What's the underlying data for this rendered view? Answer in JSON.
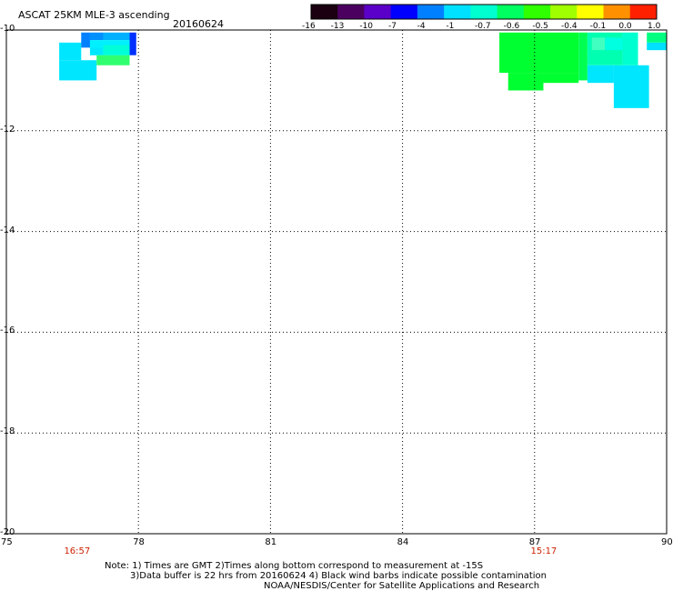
{
  "title": "ASCAT 25KM MLE-3 ascending",
  "date": "20160624",
  "colorbar": {
    "labels": [
      "-16",
      "-13",
      "-10",
      "-7",
      "-4",
      "-1",
      "-0.7",
      "-0.6",
      "-0.5",
      "-0.4",
      "-0.1",
      "0.0",
      "1.0"
    ],
    "colors": [
      "#1a0010",
      "#4b0060",
      "#5a00c8",
      "#0000ff",
      "#0080ff",
      "#00e0ff",
      "#00ffd0",
      "#00ff60",
      "#30ff00",
      "#a0ff00",
      "#ffff00",
      "#ff9000",
      "#ff2000"
    ]
  },
  "map": {
    "lon_range": [
      75,
      90
    ],
    "lat_range": [
      -20,
      -10
    ],
    "x_ticks": [
      "75",
      "78",
      "81",
      "84",
      "87",
      "90"
    ],
    "y_ticks": [
      "-10",
      "-12",
      "-14",
      "-16",
      "-18",
      "-20"
    ],
    "times": [
      {
        "label": "16:57",
        "lon": 76.6
      },
      {
        "label": "15:17",
        "lon": 87.2
      }
    ],
    "cells": [
      {
        "lon0": 76.2,
        "lon1": 77.05,
        "lat0": -10.6,
        "lat1": -11.0,
        "color": "#00e6ff"
      },
      {
        "lon0": 76.2,
        "lon1": 76.7,
        "lat0": -10.25,
        "lat1": -10.6,
        "color": "#00e6ff"
      },
      {
        "lon0": 76.7,
        "lon1": 76.9,
        "lat0": -10.05,
        "lat1": -10.35,
        "color": "#0080ff"
      },
      {
        "lon0": 76.9,
        "lon1": 77.2,
        "lat0": -10.05,
        "lat1": -10.2,
        "color": "#0090ff"
      },
      {
        "lon0": 77.2,
        "lon1": 77.8,
        "lat0": -10.05,
        "lat1": -10.2,
        "color": "#00b0ff"
      },
      {
        "lon0": 77.8,
        "lon1": 77.95,
        "lat0": -10.05,
        "lat1": -10.5,
        "color": "#0030ff"
      },
      {
        "lon0": 76.9,
        "lon1": 77.8,
        "lat0": -10.2,
        "lat1": -10.5,
        "color": "#00f0ff"
      },
      {
        "lon0": 76.9,
        "lon1": 77.2,
        "lat0": -10.35,
        "lat1": -10.5,
        "color": "#00e8ff"
      },
      {
        "lon0": 77.05,
        "lon1": 77.8,
        "lat0": -10.5,
        "lat1": -10.7,
        "color": "#30ff70"
      },
      {
        "lon0": 77.2,
        "lon1": 77.8,
        "lat0": -10.3,
        "lat1": -10.5,
        "color": "#00ffd8"
      },
      {
        "lon0": 86.2,
        "lon1": 88.0,
        "lat0": -10.05,
        "lat1": -10.85,
        "color": "#00ff30"
      },
      {
        "lon0": 86.4,
        "lon1": 87.2,
        "lat0": -10.85,
        "lat1": -11.2,
        "color": "#00ff30"
      },
      {
        "lon0": 87.2,
        "lon1": 88.0,
        "lat0": -10.85,
        "lat1": -11.05,
        "color": "#00ff30"
      },
      {
        "lon0": 88.0,
        "lon1": 88.2,
        "lat0": -10.05,
        "lat1": -11.0,
        "color": "#00ff50"
      },
      {
        "lon0": 88.2,
        "lon1": 89.0,
        "lat0": -10.05,
        "lat1": -10.7,
        "color": "#00ffb0"
      },
      {
        "lon0": 88.3,
        "lon1": 88.6,
        "lat0": -10.15,
        "lat1": -10.4,
        "color": "#40ffc0"
      },
      {
        "lon0": 88.6,
        "lon1": 89.2,
        "lat0": -10.15,
        "lat1": -10.4,
        "color": "#00ffe0"
      },
      {
        "lon0": 88.2,
        "lon1": 88.8,
        "lat0": -10.7,
        "lat1": -11.05,
        "color": "#00e6ff"
      },
      {
        "lon0": 88.8,
        "lon1": 89.6,
        "lat0": -10.7,
        "lat1": -11.55,
        "color": "#00e6ff"
      },
      {
        "lon0": 89.0,
        "lon1": 89.35,
        "lat0": -10.05,
        "lat1": -10.7,
        "color": "#00ffd0"
      },
      {
        "lon0": 89.55,
        "lon1": 90.0,
        "lat0": -10.05,
        "lat1": -10.25,
        "color": "#00ff80"
      },
      {
        "lon0": 89.55,
        "lon1": 90.0,
        "lat0": -10.25,
        "lat1": -10.4,
        "color": "#00e0ff"
      }
    ]
  },
  "notes": {
    "line1": "Note: 1) Times are GMT 2)Times along bottom correspond to measurement at -15S",
    "line2": "3)Data buffer is 22 hrs from 20160624 4) Black wind barbs indicate possible contamination",
    "line3": "NOAA/NESDIS/Center for Satellite Applications and Research"
  }
}
